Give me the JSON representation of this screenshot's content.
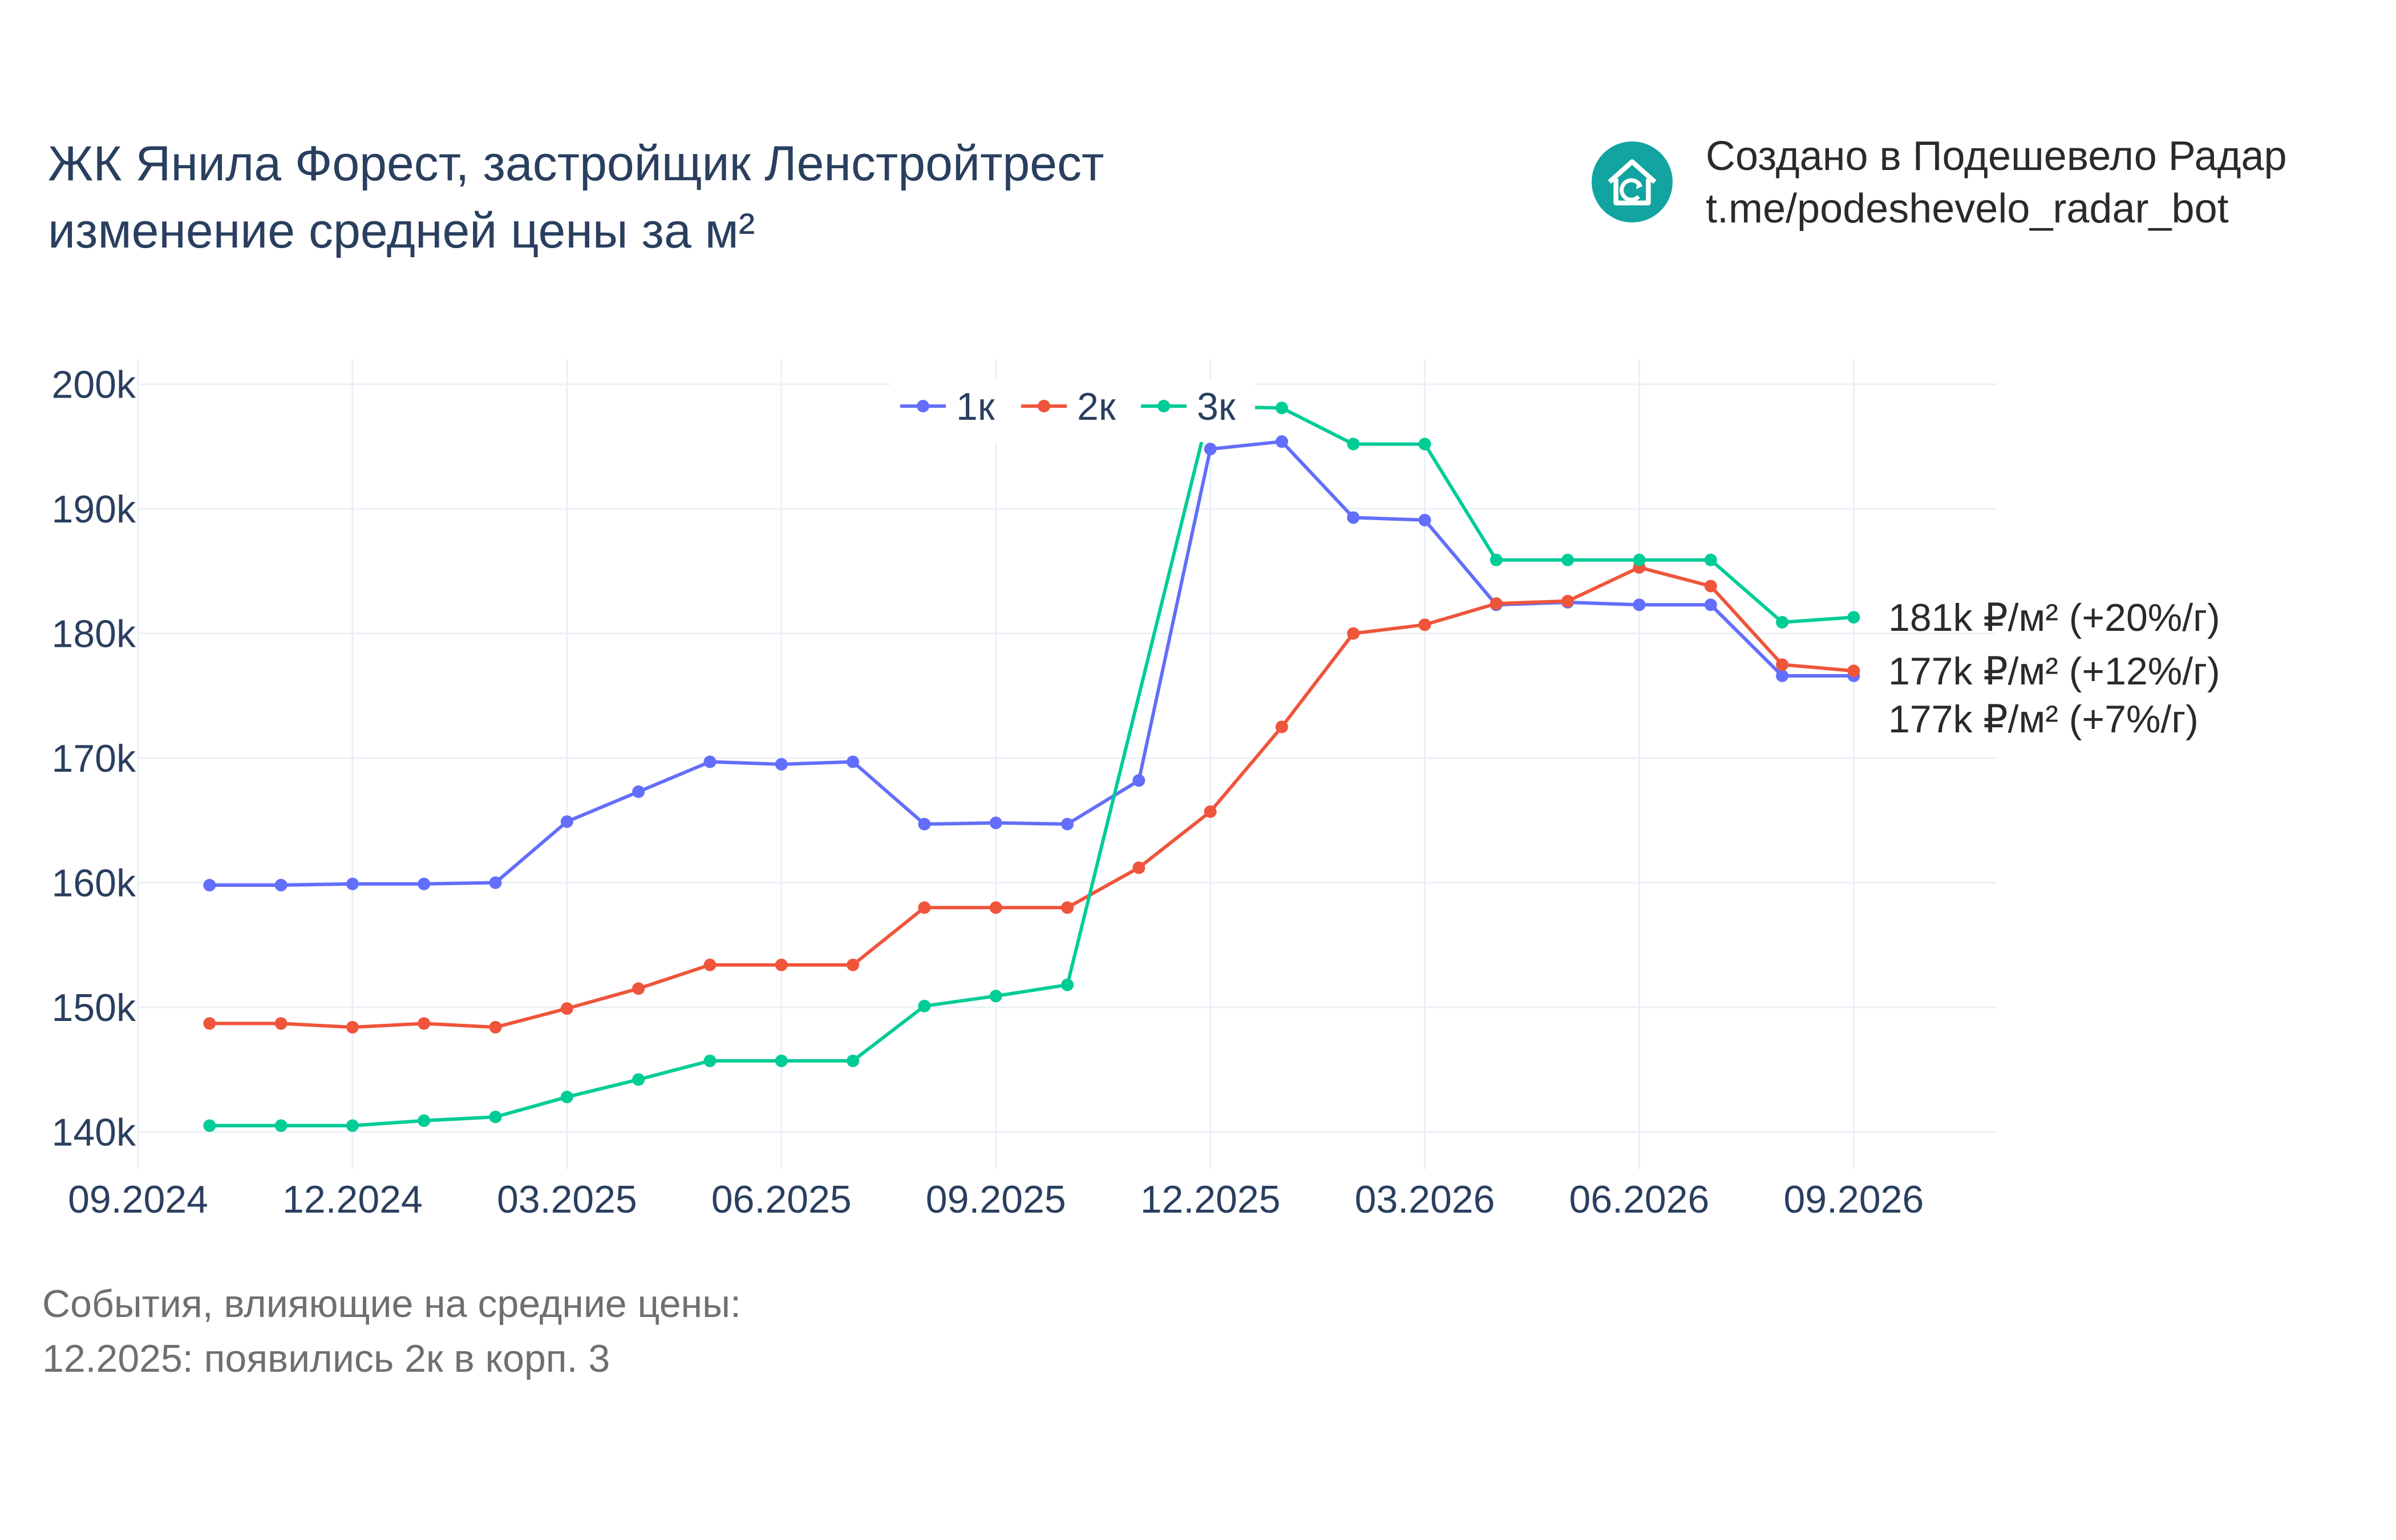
{
  "header": {
    "title_line1": "ЖК Янила Форест, застройщик Ленстройтрест",
    "title_line2": "изменение средней цены за м²"
  },
  "branding": {
    "line1": "Создано в Подешевело Радар",
    "line2": "t.me/podeshevelo_radar_bot",
    "logo_icon": "house-refresh-icon",
    "logo_color": "#12a4a0"
  },
  "events": {
    "heading": "События, влияющие на средние цены:",
    "items": [
      "12.2025: появились 2к в корп. 3"
    ]
  },
  "chart_data": {
    "type": "line",
    "title": "ЖК Янила Форест, застройщик Ленстройтрест изменение средней цены за м²",
    "xlabel": "",
    "ylabel": "",
    "x": [
      "2024-10",
      "2024-11",
      "2024-12",
      "2025-01",
      "2025-02",
      "2025-03",
      "2025-04",
      "2025-05",
      "2025-06",
      "2025-07",
      "2025-08",
      "2025-09",
      "2025-10",
      "2025-11",
      "2025-12",
      "2026-01",
      "2026-02",
      "2026-03",
      "2026-04",
      "2026-05",
      "2026-06",
      "2026-07",
      "2026-08",
      "2026-09"
    ],
    "x_ticks": [
      "09.2024",
      "12.2024",
      "03.2025",
      "06.2025",
      "09.2025",
      "12.2025",
      "03.2026",
      "06.2026",
      "09.2026"
    ],
    "x_tick_dates": [
      "2024-09",
      "2024-12",
      "2025-03",
      "2025-06",
      "2025-09",
      "2025-12",
      "2026-03",
      "2026-06",
      "2026-09"
    ],
    "xlim": [
      "2024-09",
      "2026-11"
    ],
    "y_ticks": [
      140000,
      150000,
      160000,
      170000,
      180000,
      190000,
      200000
    ],
    "y_tick_labels": [
      "140k",
      "150k",
      "160k",
      "170k",
      "180k",
      "190k",
      "200k"
    ],
    "ylim": [
      137000,
      202000
    ],
    "grid": true,
    "legend_position": "top-center",
    "series": [
      {
        "name": "1к",
        "color": "#636efa",
        "values": [
          159800,
          159800,
          159900,
          159900,
          160000,
          164900,
          167300,
          169700,
          169500,
          169700,
          164700,
          164800,
          164700,
          168200,
          194800,
          195400,
          189300,
          189100,
          182300,
          182500,
          182300,
          182300,
          176600,
          176600
        ],
        "end_label": "177k ₽/м² (+7%/г)"
      },
      {
        "name": "2к",
        "color": "#ef553b",
        "values": [
          148700,
          148700,
          148400,
          148700,
          148400,
          149900,
          151500,
          153400,
          153400,
          153400,
          158000,
          158000,
          158000,
          161200,
          165700,
          172500,
          180000,
          180700,
          182400,
          182600,
          185300,
          183800,
          177500,
          177000
        ],
        "end_label": "177k ₽/м² (+12%/г)"
      },
      {
        "name": "3к",
        "color": "#00cc96",
        "values": [
          140500,
          140500,
          140500,
          140900,
          141200,
          142800,
          144200,
          145700,
          145700,
          145700,
          150100,
          150900,
          151800,
          null,
          198200,
          198100,
          195200,
          195200,
          185900,
          185900,
          185900,
          185900,
          180900,
          181300
        ],
        "end_label": "181k ₽/м² (+20%/г)"
      }
    ]
  }
}
